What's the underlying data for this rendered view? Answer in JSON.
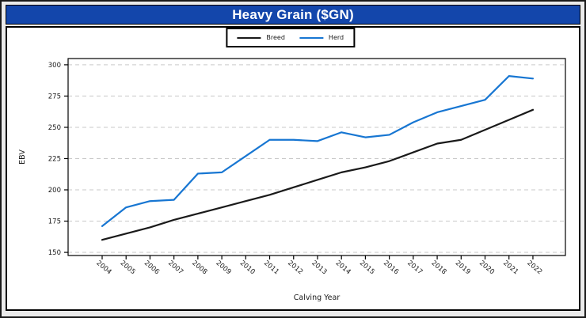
{
  "header": {
    "title": "Heavy Grain ($GN)"
  },
  "legend": {
    "items": [
      {
        "label": "Breed",
        "color": "#1a1a1a"
      },
      {
        "label": "Herd",
        "color": "#1776d2"
      }
    ],
    "position": "top center"
  },
  "chart_data": {
    "type": "line",
    "title": "Heavy Grain ($GN)",
    "xlabel": "Calving Year",
    "ylabel": "EBV",
    "x": [
      2004,
      2005,
      2006,
      2007,
      2008,
      2009,
      2010,
      2011,
      2012,
      2013,
      2014,
      2015,
      2016,
      2017,
      2018,
      2019,
      2020,
      2021,
      2022
    ],
    "series": [
      {
        "name": "Breed",
        "color": "#1a1a1a",
        "values": [
          160,
          165,
          170,
          176,
          181,
          186,
          191,
          196,
          202,
          208,
          214,
          218,
          223,
          230,
          237,
          240,
          248,
          256,
          264
        ]
      },
      {
        "name": "Herd",
        "color": "#1776d2",
        "values": [
          171,
          186,
          191,
          192,
          213,
          214,
          227,
          240,
          240,
          239,
          246,
          242,
          244,
          254,
          262,
          267,
          272,
          291,
          289
        ]
      }
    ],
    "yticks": [
      150,
      175,
      200,
      225,
      250,
      275,
      300
    ],
    "ylim": [
      147.5,
      305
    ],
    "grid": "horizontal dashed",
    "legend_position": "top center",
    "tick_label_rotation_deg": 40
  },
  "colors": {
    "titlebar": "#1346ab",
    "title_text": "#ffffff",
    "plot_background": "#ffffff",
    "page_background": "#ebebeb",
    "gridline": "#c9c9c9",
    "axis": "#000000"
  }
}
